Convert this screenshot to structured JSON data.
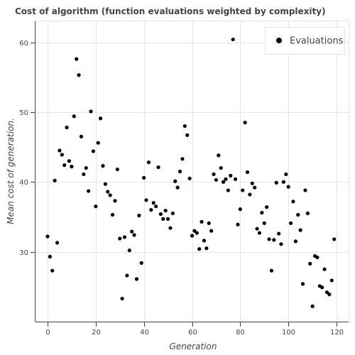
{
  "chart_data": {
    "type": "scatter",
    "title": "Cost of algorithm (function evaluations weighted by complexity)",
    "xlabel": "Generation",
    "ylabel": "Mean cost of generation.",
    "xlim": [
      -5,
      125
    ],
    "ylim": [
      20,
      63
    ],
    "xticks": [
      0,
      20,
      40,
      60,
      80,
      100,
      120
    ],
    "yticks": [
      30,
      40,
      50,
      60
    ],
    "grid": true,
    "legend_position": "top-right",
    "series": [
      {
        "name": "Evaluations",
        "color": "#000000",
        "x": [
          0,
          1,
          2,
          3,
          4,
          5,
          6,
          7,
          8,
          9,
          10,
          11,
          12,
          13,
          14,
          15,
          16,
          17,
          18,
          19,
          20,
          21,
          22,
          23,
          24,
          25,
          26,
          27,
          28,
          29,
          30,
          31,
          32,
          33,
          34,
          35,
          36,
          37,
          38,
          39,
          40,
          41,
          42,
          43,
          44,
          45,
          46,
          47,
          48,
          49,
          50,
          51,
          52,
          53,
          54,
          55,
          56,
          57,
          58,
          59,
          60,
          61,
          62,
          63,
          64,
          65,
          66,
          67,
          68,
          69,
          70,
          71,
          72,
          73,
          74,
          75,
          76,
          77,
          78,
          79,
          80,
          81,
          82,
          83,
          84,
          85,
          86,
          87,
          88,
          89,
          90,
          91,
          92,
          93,
          94,
          95,
          96,
          97,
          98,
          99,
          100,
          101,
          102,
          103,
          104,
          105,
          106,
          107,
          108,
          109,
          110,
          111,
          112,
          113,
          114,
          115,
          116,
          117,
          118,
          119
        ],
        "y": [
          32.2,
          29.3,
          27.3,
          40.2,
          31.3,
          44.5,
          43.9,
          42.4,
          47.8,
          43.0,
          42.2,
          49.4,
          57.6,
          55.3,
          46.5,
          41.1,
          42.0,
          38.7,
          50.1,
          44.4,
          36.5,
          45.6,
          49.1,
          42.3,
          39.7,
          38.6,
          38.1,
          35.3,
          37.3,
          41.8,
          31.9,
          23.3,
          32.1,
          26.6,
          30.2,
          32.9,
          32.4,
          26.1,
          35.2,
          28.4,
          40.6,
          37.4,
          42.8,
          36.0,
          37.0,
          36.5,
          42.1,
          35.4,
          34.7,
          35.9,
          34.7,
          33.4,
          35.5,
          40.1,
          39.2,
          41.5,
          43.3,
          48.0,
          46.7,
          40.5,
          32.3,
          33.0,
          32.7,
          30.4,
          34.3,
          31.6,
          30.5,
          34.1,
          33.0,
          41.1,
          40.3,
          43.8,
          42.0,
          40.0,
          40.4,
          38.8,
          40.9,
          60.4,
          40.4,
          33.9,
          36.1,
          38.8,
          48.5,
          41.4,
          38.2,
          39.8,
          39.2,
          33.3,
          32.7,
          35.6,
          34.1,
          36.4,
          31.8,
          27.3,
          31.7,
          39.9,
          32.6,
          31.1,
          40.0,
          41.1,
          39.3,
          34.1,
          37.2,
          31.5,
          35.3,
          33.1,
          25.4,
          38.8,
          35.5,
          28.3,
          22.2,
          29.4,
          29.2,
          25.1,
          24.9,
          27.5,
          24.2,
          23.9,
          25.9,
          31.8
        ]
      }
    ]
  }
}
